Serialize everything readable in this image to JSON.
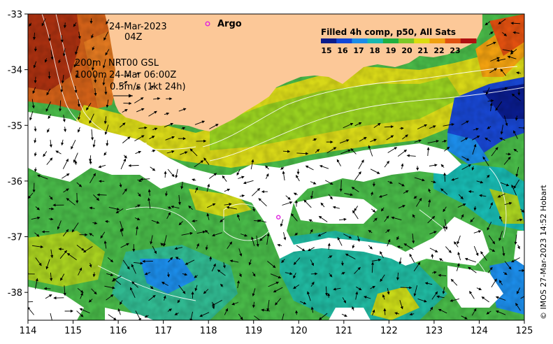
{
  "map": {
    "date": "24-Mar-2023",
    "time": "04Z",
    "depth_200": "200m",
    "depth_1000": "1000m",
    "product": "NRT00 GSL",
    "product_time": "24-Mar 06:00Z",
    "velocity_scale": "0.5m/s (1kt 24h)",
    "argo_label": "Argo",
    "credit": "© IMOS 27-Mar-2023 14:52 Hobart",
    "extent": {
      "lon": [
        114,
        125
      ],
      "lat": [
        -38.5,
        -33
      ]
    },
    "argo_position": {
      "lon": 119.55,
      "lat": -36.65
    }
  },
  "colorbar": {
    "title": "Filled 4h comp, p50, All Sats",
    "labels": [
      "15",
      "16",
      "17",
      "18",
      "19",
      "20",
      "21",
      "22",
      "23"
    ],
    "colors": [
      "#0a1c8c",
      "#1046d8",
      "#1c8ce8",
      "#18b8b0",
      "#20b040",
      "#7cc828",
      "#dcdc10",
      "#f0a010",
      "#e05010",
      "#b01010"
    ]
  },
  "axes": {
    "x_ticks": [
      "114",
      "115",
      "116",
      "117",
      "118",
      "119",
      "120",
      "121",
      "122",
      "123",
      "124",
      "125"
    ],
    "y_ticks": [
      "-33",
      "-34",
      "-35",
      "-36",
      "-37",
      "-38"
    ]
  },
  "colors": {
    "land": "#fcc898",
    "ocean_nodata": "#ffffff",
    "argo_marker": "#e020e0",
    "arrow": "#000000",
    "contour": "#ffffff"
  }
}
